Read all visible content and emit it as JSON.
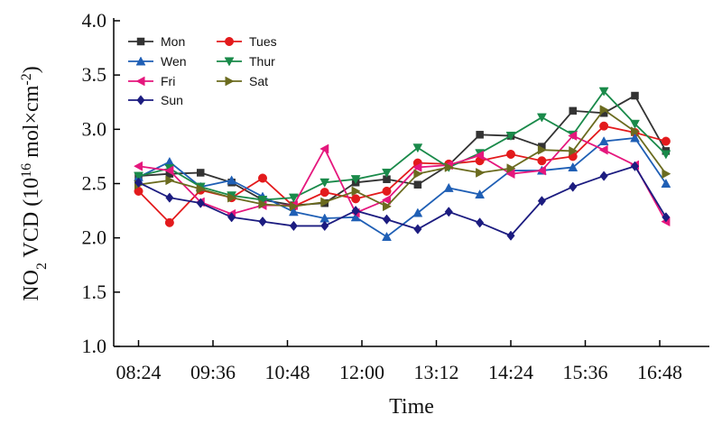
{
  "chart_data": {
    "type": "line",
    "title": "",
    "xlabel": "Time",
    "ylabel_parts": {
      "base": "NO",
      "sub": "2",
      "mid": " VCD (10",
      "sup1": "16",
      "mid2": " mol×cm",
      "sup2": "-2",
      "end": ")"
    },
    "ylim": [
      1.0,
      4.0
    ],
    "yticks": [
      1.0,
      1.5,
      2.0,
      2.5,
      3.0,
      3.5,
      4.0
    ],
    "ytick_labels": [
      "1.0",
      "1.5",
      "2.0",
      "2.5",
      "3.0",
      "3.5",
      "4.0"
    ],
    "xlim": [
      "08:00",
      "17:36"
    ],
    "xticks": [
      "08:24",
      "09:36",
      "10:48",
      "12:00",
      "13:12",
      "14:24",
      "15:36",
      "16:48"
    ],
    "x": [
      "08:24",
      "08:54",
      "09:24",
      "09:54",
      "10:24",
      "10:54",
      "11:24",
      "11:54",
      "12:24",
      "12:54",
      "13:24",
      "13:54",
      "14:24",
      "14:54",
      "15:24",
      "15:54",
      "16:24",
      "16:54"
    ],
    "legend_position": "top-left",
    "grid": false,
    "series": [
      {
        "name": "Mon",
        "color": "#333333",
        "marker": "square",
        "values": [
          2.57,
          2.59,
          2.6,
          2.51,
          2.35,
          2.3,
          2.32,
          2.51,
          2.54,
          2.49,
          2.67,
          2.95,
          2.94,
          2.84,
          3.17,
          3.15,
          3.31,
          2.8
        ]
      },
      {
        "name": "Tues",
        "color": "#e31a1c",
        "marker": "circle",
        "values": [
          2.43,
          2.14,
          2.44,
          2.37,
          2.55,
          2.29,
          2.42,
          2.36,
          2.43,
          2.69,
          2.68,
          2.71,
          2.77,
          2.71,
          2.75,
          3.03,
          2.97,
          2.89
        ]
      },
      {
        "name": "Wen",
        "color": "#1f5fb5",
        "marker": "triangle-up",
        "values": [
          2.56,
          2.7,
          2.47,
          2.53,
          2.38,
          2.24,
          2.18,
          2.19,
          2.01,
          2.23,
          2.46,
          2.4,
          2.62,
          2.62,
          2.65,
          2.89,
          2.92,
          2.5
        ]
      },
      {
        "name": "Thur",
        "color": "#1a8a4a",
        "marker": "triangle-down",
        "values": [
          2.57,
          2.64,
          2.47,
          2.39,
          2.35,
          2.37,
          2.51,
          2.54,
          2.6,
          2.83,
          2.65,
          2.78,
          2.94,
          3.11,
          2.95,
          3.35,
          3.05,
          2.77
        ]
      },
      {
        "name": "Fri",
        "color": "#e5177d",
        "marker": "triangle-left",
        "values": [
          2.66,
          2.62,
          2.33,
          2.22,
          2.3,
          2.3,
          2.82,
          2.23,
          2.35,
          2.65,
          2.67,
          2.76,
          2.59,
          2.62,
          2.94,
          2.81,
          2.67,
          2.15
        ]
      },
      {
        "name": "Sat",
        "color": "#6b6b1f",
        "marker": "triangle-right",
        "values": [
          2.49,
          2.53,
          2.45,
          2.37,
          2.31,
          2.29,
          2.33,
          2.43,
          2.29,
          2.59,
          2.65,
          2.6,
          2.64,
          2.81,
          2.8,
          3.18,
          2.98,
          2.59
        ]
      },
      {
        "name": "Sun",
        "color": "#1c1c80",
        "marker": "diamond",
        "values": [
          2.51,
          2.37,
          2.32,
          2.19,
          2.15,
          2.11,
          2.11,
          2.25,
          2.17,
          2.08,
          2.24,
          2.14,
          2.02,
          2.34,
          2.47,
          2.57,
          2.66,
          2.19
        ]
      }
    ]
  }
}
